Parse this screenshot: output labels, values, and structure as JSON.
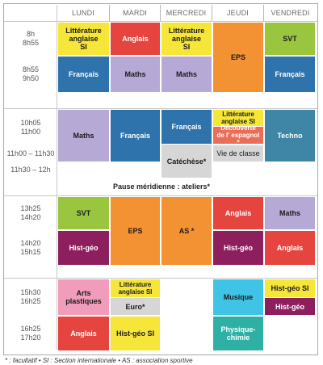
{
  "colors": {
    "yellow": "#f6e63a",
    "red": "#e6443f",
    "orange": "#f39233",
    "green": "#9ac53f",
    "blue": "#2f73ad",
    "lavender": "#b6a9d6",
    "teal": "#3e85a6",
    "grey": "#d6d6d6",
    "salmon": "#ea6d57",
    "magenta": "#8e1f5f",
    "cyan": "#3fc4e5",
    "pink": "#f09cba",
    "sea": "#2fb0a5"
  },
  "days": [
    "LUNDI",
    "MARDI",
    "MERCREDI",
    "JEUDI",
    "VENDREDI"
  ],
  "times": [
    "8h\n8h55",
    "8h55\n9h50",
    "10h05\n11h00",
    "11h00 – 11h30",
    "11h30 – 12h",
    "13h25\n14h20",
    "14h20\n15h15",
    "15h30\n16h25",
    "16h25\n17h20"
  ],
  "lunch": "Pause méridienne : ateliers*",
  "cells": {
    "mon_1": "Littérature\nanglaise\nSI",
    "tue_1": "Anglais",
    "wed_1": "Littérature\nanglaise\nSI",
    "thu_1": "EPS",
    "fri_1": "SVT",
    "mon_2": "Français",
    "tue_2": "Maths",
    "wed_2": "Maths",
    "fri_2": "Français",
    "mon_3": "Maths",
    "tue_3": "Français",
    "wed_3": "Français",
    "wed_cat": "Catéchèse*",
    "thu_3a": "Littérature\nanglaise SI",
    "thu_3b": "Découverte\nde l' espagnol *",
    "thu_3c": "Vie de classe",
    "fri_3": "Techno",
    "mon_5": "SVT",
    "tue_5": "EPS",
    "wed_5": "AS *",
    "thu_5": "Anglais",
    "fri_5": "Maths",
    "mon_6": "Hist-géo",
    "thu_6": "Hist-géo",
    "fri_6": "Anglais",
    "mon_7": "Arts\nplastiques",
    "tue_7a": "Littérature\nanglaise SI",
    "tue_7b": "Euro*",
    "thu_7": "Musique",
    "fri_7a": "Hist-géo SI",
    "fri_7b": "Hist-géo",
    "mon_8": "Anglais",
    "tue_8": "Hist-géo SI",
    "thu_8": "Physique-\nchimie"
  },
  "footnote": "* : facultatif • SI : Section internationale • AS : association sportive"
}
